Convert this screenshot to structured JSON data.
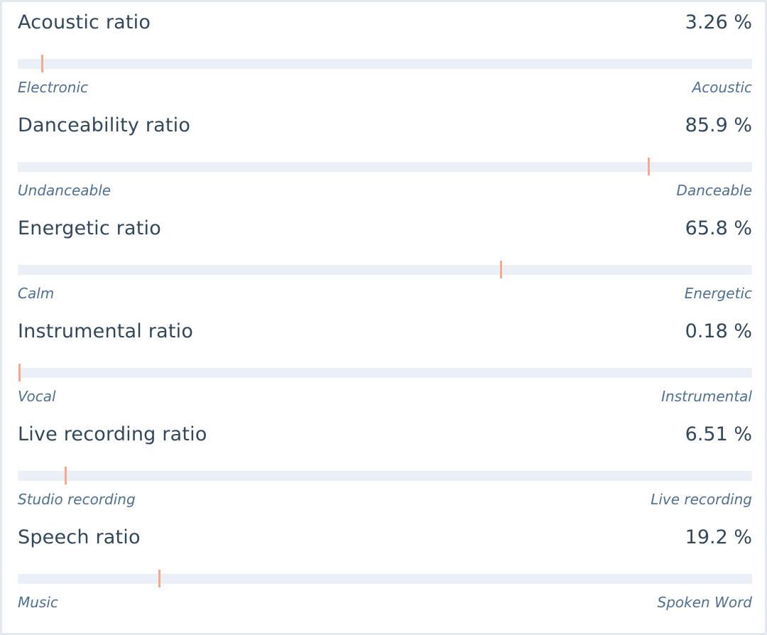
{
  "accent_color": "#f5a88e",
  "metrics": [
    {
      "title": "Acoustic ratio",
      "value": "3.26 %",
      "percent": 3.26,
      "min_label": "Electronic",
      "max_label": "Acoustic"
    },
    {
      "title": "Danceability ratio",
      "value": "85.9 %",
      "percent": 85.9,
      "min_label": "Undanceable",
      "max_label": "Danceable"
    },
    {
      "title": "Energetic ratio",
      "value": "65.8 %",
      "percent": 65.8,
      "min_label": "Calm",
      "max_label": "Energetic"
    },
    {
      "title": "Instrumental ratio",
      "value": "0.18 %",
      "percent": 0.18,
      "min_label": "Vocal",
      "max_label": "Instrumental"
    },
    {
      "title": "Live recording ratio",
      "value": "6.51 %",
      "percent": 6.51,
      "min_label": "Studio recording",
      "max_label": "Live recording"
    },
    {
      "title": "Speech ratio",
      "value": "19.2 %",
      "percent": 19.2,
      "min_label": "Music",
      "max_label": "Spoken Word"
    }
  ]
}
